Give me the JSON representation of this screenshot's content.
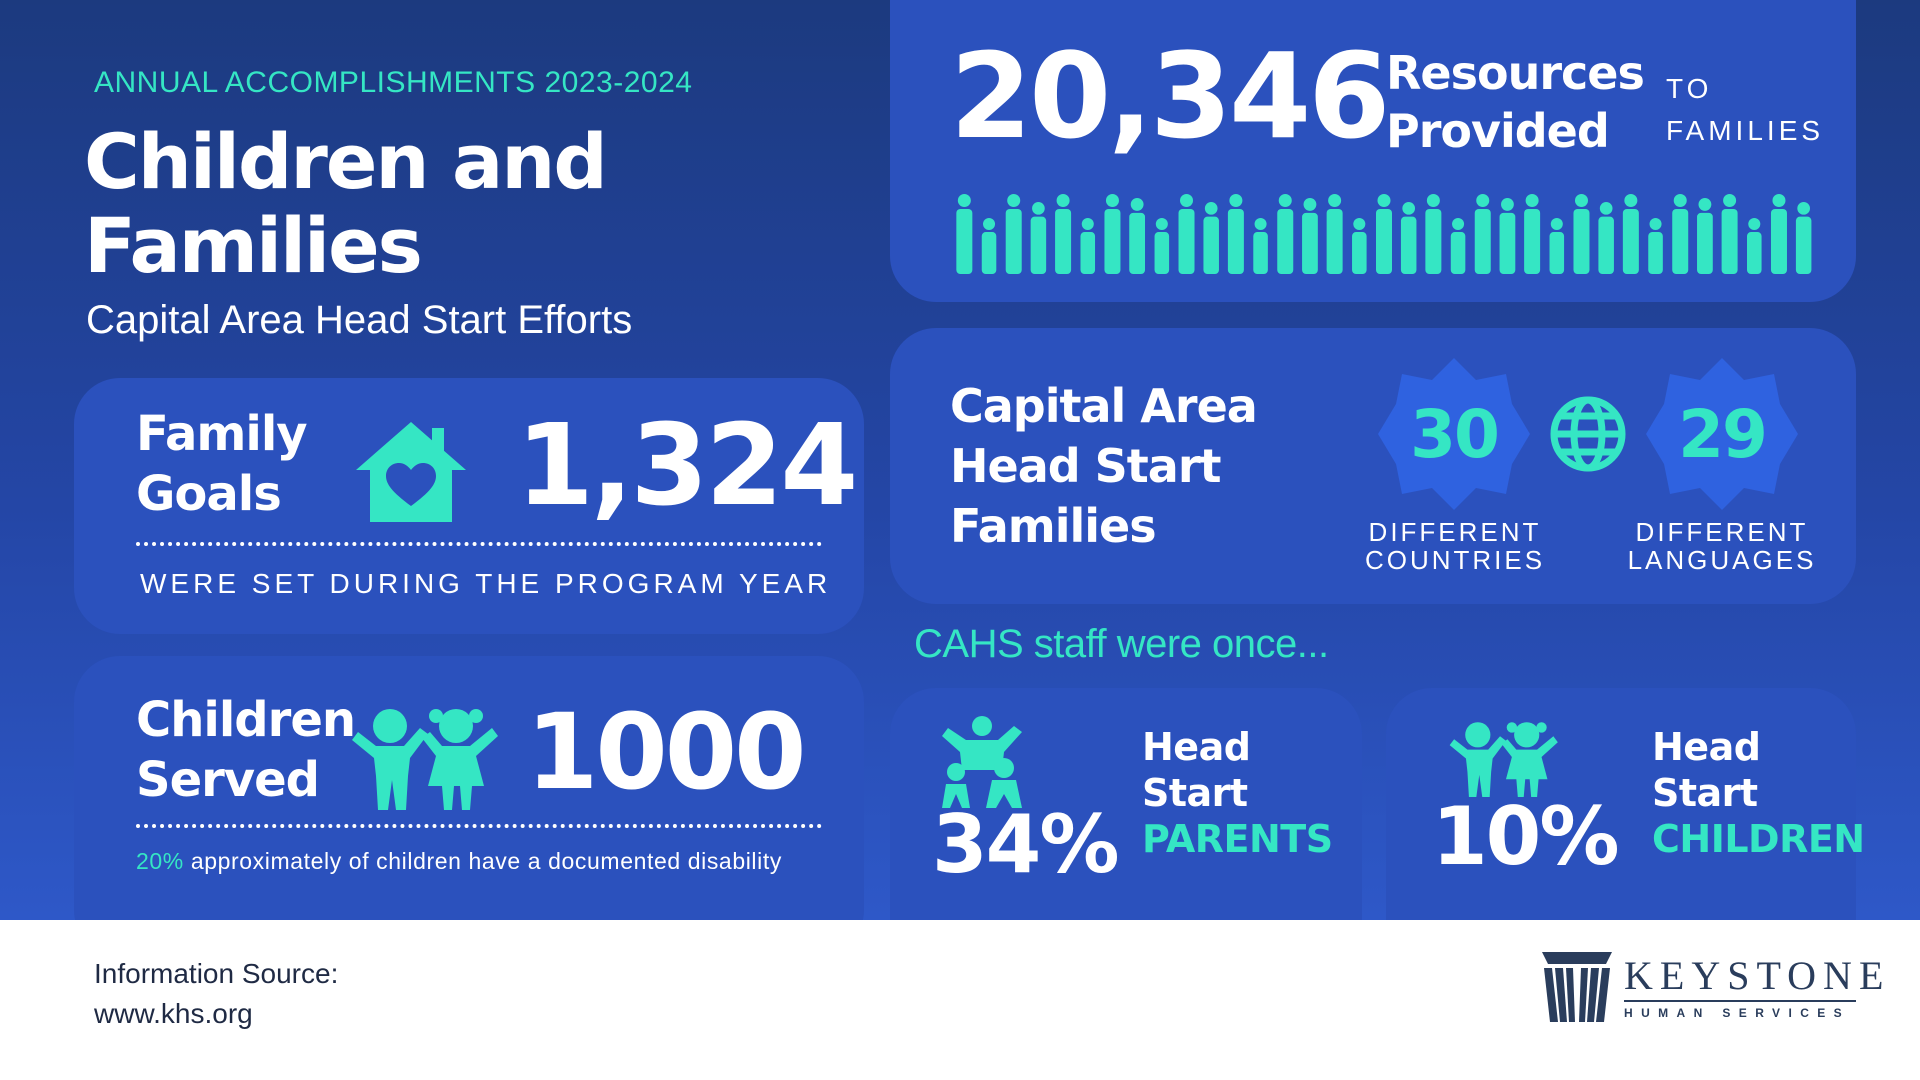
{
  "header": {
    "kicker": "ANNUAL ACCOMPLISHMENTS 2023-2024",
    "title_line1": "Children and",
    "title_line2": "Families",
    "subtitle": "Capital Area Head Start Efforts"
  },
  "family_goals": {
    "label_line1": "Family",
    "label_line2": "Goals",
    "value": "1,324",
    "caption": "WERE SET DURING THE PROGRAM YEAR",
    "icon": "house-heart-icon"
  },
  "children_served": {
    "label_line1": "Children",
    "label_line2": "Served",
    "value": "1000",
    "note_highlight": "20%",
    "note_rest": " approximately of children have a documented disability",
    "icon": "two-children-icon"
  },
  "resources": {
    "value": "20,346",
    "label_line1": "Resources",
    "label_line2": "Provided",
    "suffix_line1": "TO",
    "suffix_line2": "FAMILIES",
    "icon": "crowd-of-people-icon"
  },
  "cahs_families": {
    "label_line1": "Capital Area",
    "label_line2": "Head Start",
    "label_line3": "Families",
    "countries_value": "30",
    "countries_line1": "DIFFERENT",
    "countries_line2": "COUNTRIES",
    "languages_value": "29",
    "languages_line1": "DIFFERENT",
    "languages_line2": "LANGUAGES",
    "icon": "globe-icon"
  },
  "staff": {
    "heading": "CAHS staff were once...",
    "parents": {
      "value": "34%",
      "line1": "Head",
      "line2": "Start",
      "line3": "PARENTS",
      "icon": "parent-child-icon"
    },
    "children": {
      "value": "10%",
      "line1": "Head",
      "line2": "Start",
      "line3": "CHILDREN",
      "icon": "two-children-icon"
    }
  },
  "footer": {
    "source_label": "Information Source:",
    "source_url": "www.khs.org",
    "logo_name": "KEYSTONE",
    "logo_sub": "HUMAN SERVICES"
  },
  "colors": {
    "accent": "#35e6c4",
    "card": "#2b51bd",
    "badge": "#2f62e0",
    "background_top": "#1c3a7f",
    "background_bottom": "#2e58c8"
  }
}
